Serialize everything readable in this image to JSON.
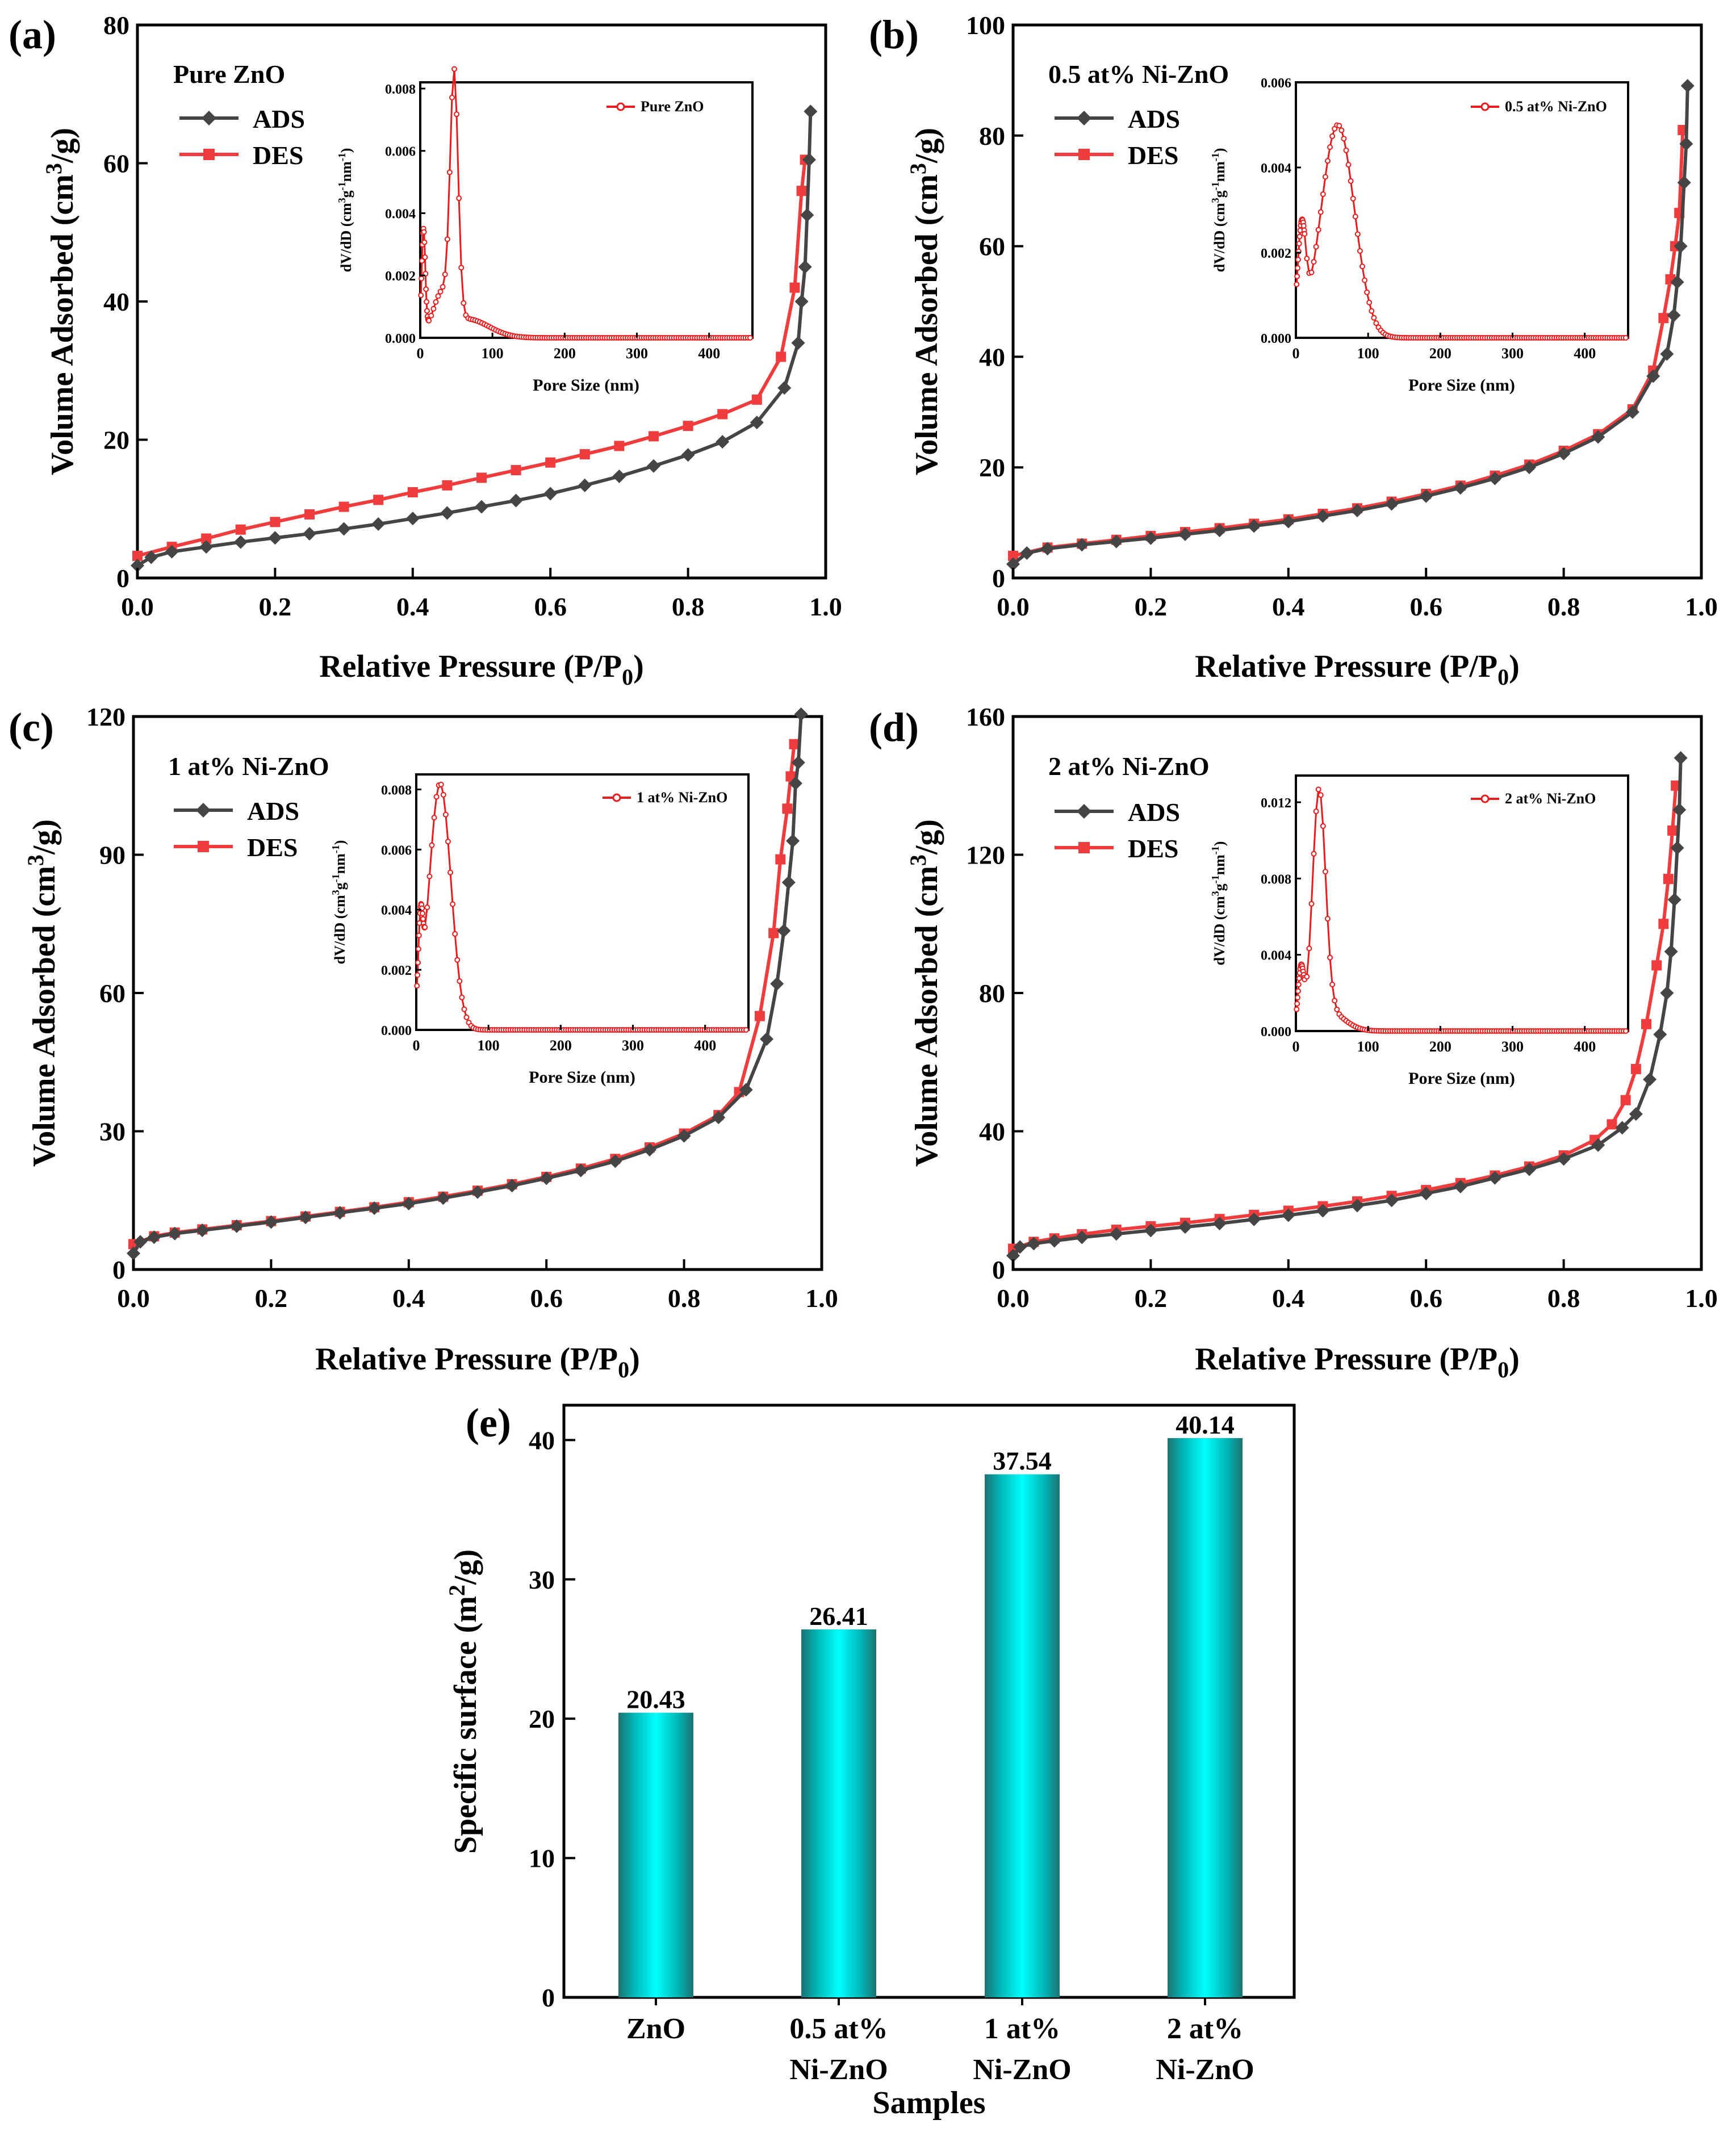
{
  "figure": {
    "panels": [
      {
        "label": "(a)",
        "sample": "Pure ZnO",
        "legend": [
          "ADS",
          "DES"
        ],
        "xlabel": "Relative Pressure (P/P0)",
        "ylabel": "Volume Adsorbed (cm3/g)",
        "inset_legend": "Pure ZnO",
        "inset_xlabel": "Pore Size (nm)",
        "inset_ylabel": "dV/dD (cm3g-1nm-1)"
      },
      {
        "label": "(b)",
        "sample": "0.5 at% Ni-ZnO",
        "legend": [
          "ADS",
          "DES"
        ],
        "xlabel": "Relative Pressure (P/P0)",
        "ylabel": "Volume Adsorbed (cm3/g)",
        "inset_legend": "0.5 at% Ni-ZnO",
        "inset_xlabel": "Pore Size (nm)",
        "inset_ylabel": "dV/dD (cm3g-1nm-1)"
      },
      {
        "label": "(c)",
        "sample": "1 at% Ni-ZnO",
        "legend": [
          "ADS",
          "DES"
        ],
        "xlabel": "Relative Pressure (P/P0)",
        "ylabel": "Volume Adsorbed (cm3/g)",
        "inset_legend": "1 at% Ni-ZnO",
        "inset_xlabel": "Pore Size (nm)",
        "inset_ylabel": "dV/dD (cm3g-1nm-1)"
      },
      {
        "label": "(d)",
        "sample": "2 at% Ni-ZnO",
        "legend": [
          "ADS",
          "DES"
        ],
        "xlabel": "Relative Pressure (P/P0)",
        "ylabel": "Volume Adsorbed (cm3/g)",
        "inset_legend": "2 at% Ni-ZnO",
        "inset_xlabel": "Pore Size (nm)",
        "inset_ylabel": "dV/dD (cm3g-1nm-1)"
      }
    ],
    "bar_panel": {
      "label": "(e)",
      "xlabel": "Samples",
      "ylabel": "Specific surface (m2/g)"
    }
  },
  "colors": {
    "ads": "#454545",
    "des": "#f03c3c",
    "inset": "#e81c1c",
    "bar_center": "#00ffff",
    "bar_edge": "#1e7272"
  },
  "chart_data": [
    {
      "type": "line",
      "title": "Pure ZnO",
      "xlabel": "Relative Pressure (P/P0)",
      "ylabel": "Volume Adsorbed (cm3/g)",
      "xlim": [
        0,
        1.0
      ],
      "ylim": [
        0,
        80
      ],
      "xticks": [
        "0.0",
        "0.2",
        "0.4",
        "0.6",
        "0.8",
        "1.0"
      ],
      "yticks": [
        "0",
        "20",
        "40",
        "60",
        "80"
      ],
      "series": [
        {
          "name": "ADS",
          "marker": "diamond",
          "x": [
            0.0,
            0.02,
            0.05,
            0.1,
            0.15,
            0.2,
            0.25,
            0.3,
            0.35,
            0.4,
            0.45,
            0.5,
            0.55,
            0.6,
            0.65,
            0.7,
            0.75,
            0.8,
            0.85,
            0.9,
            0.94,
            0.96,
            0.965,
            0.97,
            0.973,
            0.976,
            0.978
          ],
          "y": [
            1.8,
            3.0,
            3.8,
            4.5,
            5.2,
            5.8,
            6.4,
            7.1,
            7.8,
            8.6,
            9.4,
            10.3,
            11.2,
            12.2,
            13.4,
            14.7,
            16.2,
            17.8,
            19.7,
            22.5,
            27.5,
            34.0,
            40.0,
            45.0,
            52.5,
            60.5,
            67.5
          ]
        },
        {
          "name": "DES",
          "marker": "square",
          "x": [
            0.0,
            0.05,
            0.1,
            0.15,
            0.2,
            0.25,
            0.3,
            0.35,
            0.4,
            0.45,
            0.5,
            0.55,
            0.6,
            0.65,
            0.7,
            0.75,
            0.8,
            0.85,
            0.9,
            0.935,
            0.955,
            0.965,
            0.97
          ],
          "y": [
            3.2,
            4.5,
            5.7,
            7.0,
            8.1,
            9.2,
            10.3,
            11.3,
            12.4,
            13.4,
            14.5,
            15.6,
            16.7,
            17.9,
            19.1,
            20.5,
            22.0,
            23.7,
            25.8,
            32.0,
            42.0,
            56.0,
            60.5
          ]
        }
      ],
      "inset": {
        "xlabel": "Pore Size (nm)",
        "ylabel": "dV/dD (cm3g-1nm-1)",
        "legend": "Pure ZnO",
        "xlim": [
          0,
          460
        ],
        "ylim": [
          0,
          0.0082
        ],
        "xticks": [
          "0",
          "100",
          "200",
          "300",
          "400"
        ],
        "yticks": [
          "0.000",
          "0.002",
          "0.004",
          "0.006",
          "0.008"
        ],
        "peaks": [
          {
            "center": 4.5,
            "height": 0.0033,
            "width": 2.5
          },
          {
            "center": 47,
            "height": 0.0077,
            "width": 5.5
          },
          {
            "center": 30,
            "height": 0.0012,
            "width": 12
          },
          {
            "center": 65,
            "height": 0.0006,
            "width": 30
          }
        ]
      }
    },
    {
      "type": "line",
      "title": "0.5 at% Ni-ZnO",
      "xlabel": "Relative Pressure (P/P0)",
      "ylabel": "Volume Adsorbed (cm3/g)",
      "xlim": [
        0,
        1.0
      ],
      "ylim": [
        0,
        100
      ],
      "xticks": [
        "0.0",
        "0.2",
        "0.4",
        "0.6",
        "0.8",
        "1.0"
      ],
      "yticks": [
        "0",
        "20",
        "40",
        "60",
        "80",
        "100"
      ],
      "series": [
        {
          "name": "ADS",
          "marker": "diamond",
          "x": [
            0.0,
            0.02,
            0.05,
            0.1,
            0.15,
            0.2,
            0.25,
            0.3,
            0.35,
            0.4,
            0.45,
            0.5,
            0.55,
            0.6,
            0.65,
            0.7,
            0.75,
            0.8,
            0.85,
            0.9,
            0.93,
            0.95,
            0.96,
            0.965,
            0.97,
            0.975,
            0.978,
            0.98
          ],
          "y": [
            2.5,
            4.5,
            5.3,
            6.0,
            6.6,
            7.2,
            7.9,
            8.6,
            9.4,
            10.2,
            11.2,
            12.2,
            13.4,
            14.8,
            16.3,
            18.0,
            20.0,
            22.5,
            25.5,
            30.0,
            36.5,
            40.5,
            47.5,
            53.5,
            60.0,
            71.5,
            78.5,
            89.0
          ]
        },
        {
          "name": "DES",
          "marker": "square",
          "x": [
            0.0,
            0.05,
            0.1,
            0.15,
            0.2,
            0.25,
            0.3,
            0.35,
            0.4,
            0.45,
            0.5,
            0.55,
            0.6,
            0.65,
            0.7,
            0.75,
            0.8,
            0.85,
            0.9,
            0.93,
            0.945,
            0.955,
            0.962,
            0.968,
            0.973
          ],
          "y": [
            4.0,
            5.5,
            6.2,
            6.9,
            7.6,
            8.3,
            9.0,
            9.8,
            10.6,
            11.6,
            12.6,
            13.8,
            15.2,
            16.7,
            18.5,
            20.5,
            23.0,
            26.0,
            30.5,
            37.5,
            47.0,
            54.0,
            60.0,
            66.0,
            81.0
          ]
        }
      ],
      "inset": {
        "xlabel": "Pore Size (nm)",
        "ylabel": "dV/dD (cm3g-1nm-1)",
        "legend": "0.5 at% Ni-ZnO",
        "xlim": [
          0,
          460
        ],
        "ylim": [
          0,
          0.006
        ],
        "xticks": [
          "0",
          "100",
          "200",
          "300",
          "400"
        ],
        "yticks": [
          "0.000",
          "0.002",
          "0.004",
          "0.006"
        ],
        "peaks": [
          {
            "center": 8,
            "height": 0.0023,
            "width": 5.5
          },
          {
            "center": 58,
            "height": 0.005,
            "width": 23
          }
        ]
      }
    },
    {
      "type": "line",
      "title": "1 at% Ni-ZnO",
      "xlabel": "Relative Pressure (P/P0)",
      "ylabel": "Volume Adsorbed (cm3/g)",
      "xlim": [
        0,
        1.0
      ],
      "ylim": [
        0,
        120
      ],
      "xticks": [
        "0.0",
        "0.2",
        "0.4",
        "0.6",
        "0.8",
        "1.0"
      ],
      "yticks": [
        "0",
        "30",
        "60",
        "90",
        "120"
      ],
      "series": [
        {
          "name": "ADS",
          "marker": "diamond",
          "x": [
            0.0,
            0.01,
            0.03,
            0.06,
            0.1,
            0.15,
            0.2,
            0.25,
            0.3,
            0.35,
            0.4,
            0.45,
            0.5,
            0.55,
            0.6,
            0.65,
            0.7,
            0.75,
            0.8,
            0.85,
            0.89,
            0.92,
            0.935,
            0.945,
            0.952,
            0.958,
            0.962,
            0.966,
            0.97
          ],
          "y": [
            3.5,
            6.0,
            7.0,
            7.8,
            8.5,
            9.4,
            10.3,
            11.3,
            12.3,
            13.3,
            14.3,
            15.5,
            16.8,
            18.2,
            19.8,
            21.5,
            23.5,
            26.0,
            29.0,
            33.0,
            39.0,
            50.0,
            62.0,
            73.5,
            84.0,
            93.0,
            105.5,
            110.0,
            120.5
          ]
        },
        {
          "name": "DES",
          "marker": "square",
          "x": [
            0.0,
            0.03,
            0.06,
            0.1,
            0.15,
            0.2,
            0.25,
            0.3,
            0.35,
            0.4,
            0.45,
            0.5,
            0.55,
            0.6,
            0.65,
            0.7,
            0.75,
            0.8,
            0.85,
            0.88,
            0.91,
            0.93,
            0.94,
            0.95,
            0.955,
            0.96
          ],
          "y": [
            5.5,
            7.2,
            8.0,
            8.7,
            9.6,
            10.5,
            11.5,
            12.5,
            13.5,
            14.6,
            15.8,
            17.1,
            18.5,
            20.1,
            21.9,
            24.0,
            26.5,
            29.5,
            33.5,
            38.5,
            55.0,
            73.0,
            89.0,
            100.0,
            107.0,
            114.0
          ]
        }
      ],
      "inset": {
        "xlabel": "Pore Size (nm)",
        "ylabel": "dV/dD (cm3g-1nm-1)",
        "legend": "1 at% Ni-ZnO",
        "xlim": [
          0,
          460
        ],
        "ylim": [
          0,
          0.0085
        ],
        "xticks": [
          "0",
          "100",
          "200",
          "300",
          "400"
        ],
        "yticks": [
          "0.000",
          "0.002",
          "0.004",
          "0.006",
          "0.008"
        ],
        "peaks": [
          {
            "center": 6,
            "height": 0.0025,
            "width": 3
          },
          {
            "center": 33,
            "height": 0.0082,
            "width": 15
          }
        ]
      }
    },
    {
      "type": "line",
      "title": "2 at% Ni-ZnO",
      "xlabel": "Relative Pressure (P/P0)",
      "ylabel": "Volume Adsorbed (cm3/g)",
      "xlim": [
        0,
        1.0
      ],
      "ylim": [
        0,
        160
      ],
      "xticks": [
        "0.0",
        "0.2",
        "0.4",
        "0.6",
        "0.8",
        "1.0"
      ],
      "yticks": [
        "0",
        "40",
        "80",
        "120",
        "160"
      ],
      "series": [
        {
          "name": "ADS",
          "marker": "diamond",
          "x": [
            0.0,
            0.01,
            0.03,
            0.06,
            0.1,
            0.15,
            0.2,
            0.25,
            0.3,
            0.35,
            0.4,
            0.45,
            0.5,
            0.55,
            0.6,
            0.65,
            0.7,
            0.75,
            0.8,
            0.85,
            0.885,
            0.905,
            0.925,
            0.94,
            0.95,
            0.956,
            0.961,
            0.965,
            0.968,
            0.97
          ],
          "y": [
            4.0,
            6.5,
            7.5,
            8.3,
            9.3,
            10.3,
            11.3,
            12.3,
            13.3,
            14.5,
            15.7,
            17.0,
            18.5,
            20.0,
            22.0,
            24.0,
            26.5,
            29.0,
            32.0,
            36.0,
            41.0,
            45.0,
            55.0,
            68.0,
            80.0,
            92.0,
            107.0,
            122.0,
            133.0,
            148.0
          ]
        },
        {
          "name": "DES",
          "marker": "square",
          "x": [
            0.0,
            0.03,
            0.06,
            0.1,
            0.15,
            0.2,
            0.25,
            0.3,
            0.35,
            0.4,
            0.45,
            0.5,
            0.55,
            0.6,
            0.65,
            0.7,
            0.75,
            0.8,
            0.845,
            0.87,
            0.89,
            0.905,
            0.92,
            0.935,
            0.945,
            0.952,
            0.958,
            0.963
          ],
          "y": [
            6.0,
            8.0,
            9.0,
            10.2,
            11.5,
            12.5,
            13.5,
            14.6,
            15.8,
            17.0,
            18.3,
            19.7,
            21.3,
            23.0,
            25.0,
            27.2,
            29.8,
            33.0,
            37.5,
            42.0,
            49.0,
            58.0,
            71.0,
            88.0,
            100.0,
            113.0,
            127.0,
            140.0
          ]
        }
      ],
      "inset": {
        "xlabel": "Pore Size (nm)",
        "ylabel": "dV/dD (cm3g-1nm-1)",
        "legend": "2 at% Ni-ZnO",
        "xlim": [
          0,
          460
        ],
        "ylim": [
          0,
          0.0134
        ],
        "xticks": [
          "0",
          "100",
          "200",
          "300",
          "400"
        ],
        "yticks": [
          "0.000",
          "0.004",
          "0.008",
          "0.012"
        ],
        "peaks": [
          {
            "center": 7,
            "height": 0.003,
            "width": 4
          },
          {
            "center": 32,
            "height": 0.0119,
            "width": 9
          },
          {
            "center": 45,
            "height": 0.001,
            "width": 22
          }
        ]
      }
    },
    {
      "type": "bar",
      "title": "",
      "xlabel": "Samples",
      "ylabel": "Specific surface (m2/g)",
      "categories": [
        [
          "ZnO"
        ],
        [
          "0.5 at%",
          "Ni-ZnO"
        ],
        [
          "1 at%",
          "Ni-ZnO"
        ],
        [
          "2 at%",
          "Ni-ZnO"
        ]
      ],
      "values": [
        20.43,
        26.41,
        37.54,
        40.14
      ],
      "value_labels": [
        "20.43",
        "26.41",
        "37.54",
        "40.14"
      ],
      "ylim": [
        0,
        42.5
      ],
      "yticks": [
        "0",
        "10",
        "20",
        "30",
        "40"
      ]
    }
  ]
}
